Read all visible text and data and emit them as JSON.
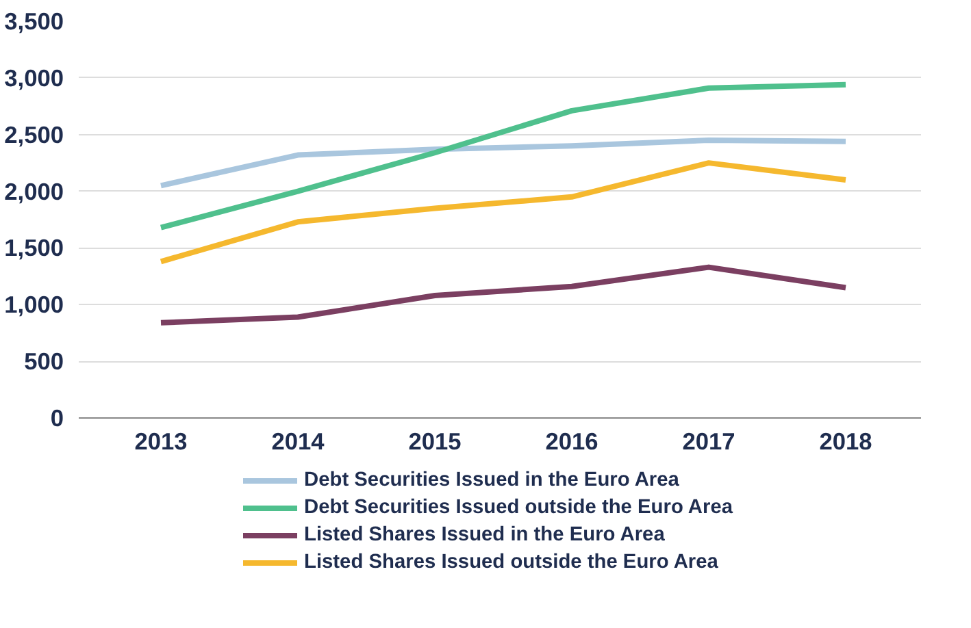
{
  "chart_data": {
    "type": "line",
    "categories": [
      "2013",
      "2014",
      "2015",
      "2016",
      "2017",
      "2018"
    ],
    "series": [
      {
        "name": "Debt Securities Issued in the Euro Area",
        "color": "#a9c6de",
        "values": [
          2050,
          2320,
          2370,
          2400,
          2450,
          2440
        ]
      },
      {
        "name": "Debt Securities Issued outside the Euro Area",
        "color": "#4fc08d",
        "values": [
          1680,
          2000,
          2340,
          2710,
          2910,
          2940
        ]
      },
      {
        "name": "Listed Shares Issued in the Euro Area",
        "color": "#7b3f61",
        "values": [
          840,
          890,
          1080,
          1160,
          1330,
          1150
        ]
      },
      {
        "name": "Listed Shares Issued outside the Euro Area",
        "color": "#f5b82e",
        "values": [
          1380,
          1730,
          1850,
          1950,
          2250,
          2100
        ]
      }
    ],
    "ylim": [
      0,
      3500
    ],
    "yticks": [
      {
        "value": 0,
        "label": "0"
      },
      {
        "value": 500,
        "label": "500"
      },
      {
        "value": 1000,
        "label": "1,000"
      },
      {
        "value": 1500,
        "label": "1,500"
      },
      {
        "value": 2000,
        "label": "2,000"
      },
      {
        "value": 2500,
        "label": "2,500"
      },
      {
        "value": 3000,
        "label": "3,000"
      },
      {
        "value": 3500,
        "label": "3,500"
      }
    ],
    "grid": "y",
    "legend": "bottom",
    "marker": "none",
    "line_style": "solid"
  }
}
